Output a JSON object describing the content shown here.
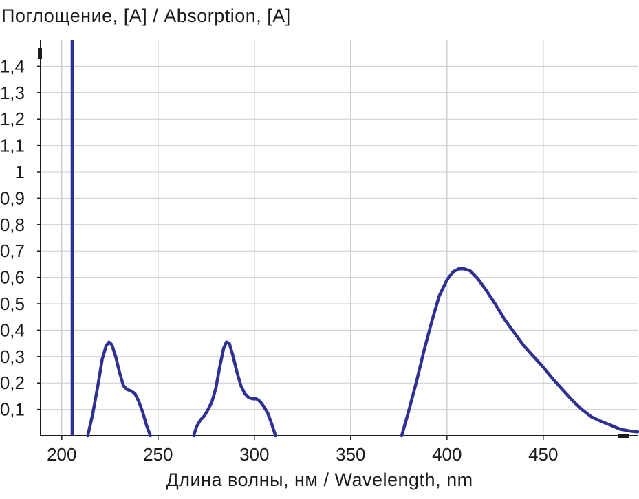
{
  "chart_data": {
    "type": "line",
    "title": "",
    "ylabel": "Поглощение, [A] / Absorption, [A]",
    "xlabel": "Длина волны, нм / Wavelength, nm",
    "xlim": [
      189,
      499
    ],
    "ylim": [
      0,
      1.5
    ],
    "x_ticks": [
      {
        "value": 200,
        "label": "200"
      },
      {
        "value": 250,
        "label": "250"
      },
      {
        "value": 300,
        "label": "300"
      },
      {
        "value": 350,
        "label": "350"
      },
      {
        "value": 400,
        "label": "400"
      },
      {
        "value": 450,
        "label": "450"
      }
    ],
    "y_ticks": [
      {
        "value": 0.1,
        "label": "0,1"
      },
      {
        "value": 0.2,
        "label": "0,2"
      },
      {
        "value": 0.3,
        "label": "0,3"
      },
      {
        "value": 0.4,
        "label": "0,4"
      },
      {
        "value": 0.5,
        "label": "0,5"
      },
      {
        "value": 0.6,
        "label": "0,6"
      },
      {
        "value": 0.7,
        "label": "0,7"
      },
      {
        "value": 0.8,
        "label": "0,8"
      },
      {
        "value": 0.9,
        "label": "0,9"
      },
      {
        "value": 1.0,
        "label": "1"
      },
      {
        "value": 1.1,
        "label": "1,1"
      },
      {
        "value": 1.2,
        "label": "1,2"
      },
      {
        "value": 1.3,
        "label": "1,3"
      },
      {
        "value": 1.4,
        "label": "1,4"
      }
    ],
    "grid": true,
    "line_color": "#2e3192",
    "grid_color": "#c8ccd0",
    "vertical_marker": {
      "x": 205.5
    },
    "series": [
      {
        "segments": [
          [
            [
              213.5,
              0.0
            ],
            [
              216,
              0.08
            ],
            [
              219,
              0.2
            ],
            [
              221,
              0.29
            ],
            [
              223,
              0.34
            ],
            [
              224.5,
              0.355
            ],
            [
              226,
              0.345
            ],
            [
              228,
              0.3
            ],
            [
              230,
              0.24
            ],
            [
              232,
              0.19
            ],
            [
              234,
              0.175
            ],
            [
              236,
              0.17
            ],
            [
              238,
              0.16
            ],
            [
              240,
              0.13
            ],
            [
              242,
              0.09
            ],
            [
              244,
              0.04
            ],
            [
              246,
              0.0
            ]
          ],
          [
            [
              268.5,
              0.0
            ],
            [
              270,
              0.035
            ],
            [
              272,
              0.06
            ],
            [
              274,
              0.075
            ],
            [
              276,
              0.1
            ],
            [
              278,
              0.13
            ],
            [
              280,
              0.18
            ],
            [
              282,
              0.26
            ],
            [
              284,
              0.33
            ],
            [
              285.5,
              0.355
            ],
            [
              287,
              0.35
            ],
            [
              289,
              0.3
            ],
            [
              291,
              0.24
            ],
            [
              293,
              0.19
            ],
            [
              295,
              0.16
            ],
            [
              297,
              0.145
            ],
            [
              299,
              0.14
            ],
            [
              301,
              0.14
            ],
            [
              303,
              0.13
            ],
            [
              305,
              0.11
            ],
            [
              307,
              0.085
            ],
            [
              309,
              0.045
            ],
            [
              311,
              0.0
            ]
          ],
          [
            [
              376.5,
              0.0
            ],
            [
              380,
              0.09
            ],
            [
              384,
              0.2
            ],
            [
              388,
              0.32
            ],
            [
              392,
              0.43
            ],
            [
              396,
              0.53
            ],
            [
              400,
              0.59
            ],
            [
              403,
              0.62
            ],
            [
              406,
              0.632
            ],
            [
              409,
              0.632
            ],
            [
              412,
              0.625
            ],
            [
              416,
              0.595
            ],
            [
              420,
              0.555
            ],
            [
              425,
              0.5
            ],
            [
              430,
              0.44
            ],
            [
              435,
              0.39
            ],
            [
              440,
              0.34
            ],
            [
              445,
              0.3
            ],
            [
              450,
              0.26
            ],
            [
              455,
              0.215
            ],
            [
              460,
              0.175
            ],
            [
              465,
              0.135
            ],
            [
              470,
              0.1
            ],
            [
              475,
              0.072
            ],
            [
              480,
              0.055
            ],
            [
              485,
              0.04
            ],
            [
              490,
              0.025
            ],
            [
              495,
              0.018
            ],
            [
              499,
              0.015
            ]
          ]
        ]
      }
    ]
  }
}
